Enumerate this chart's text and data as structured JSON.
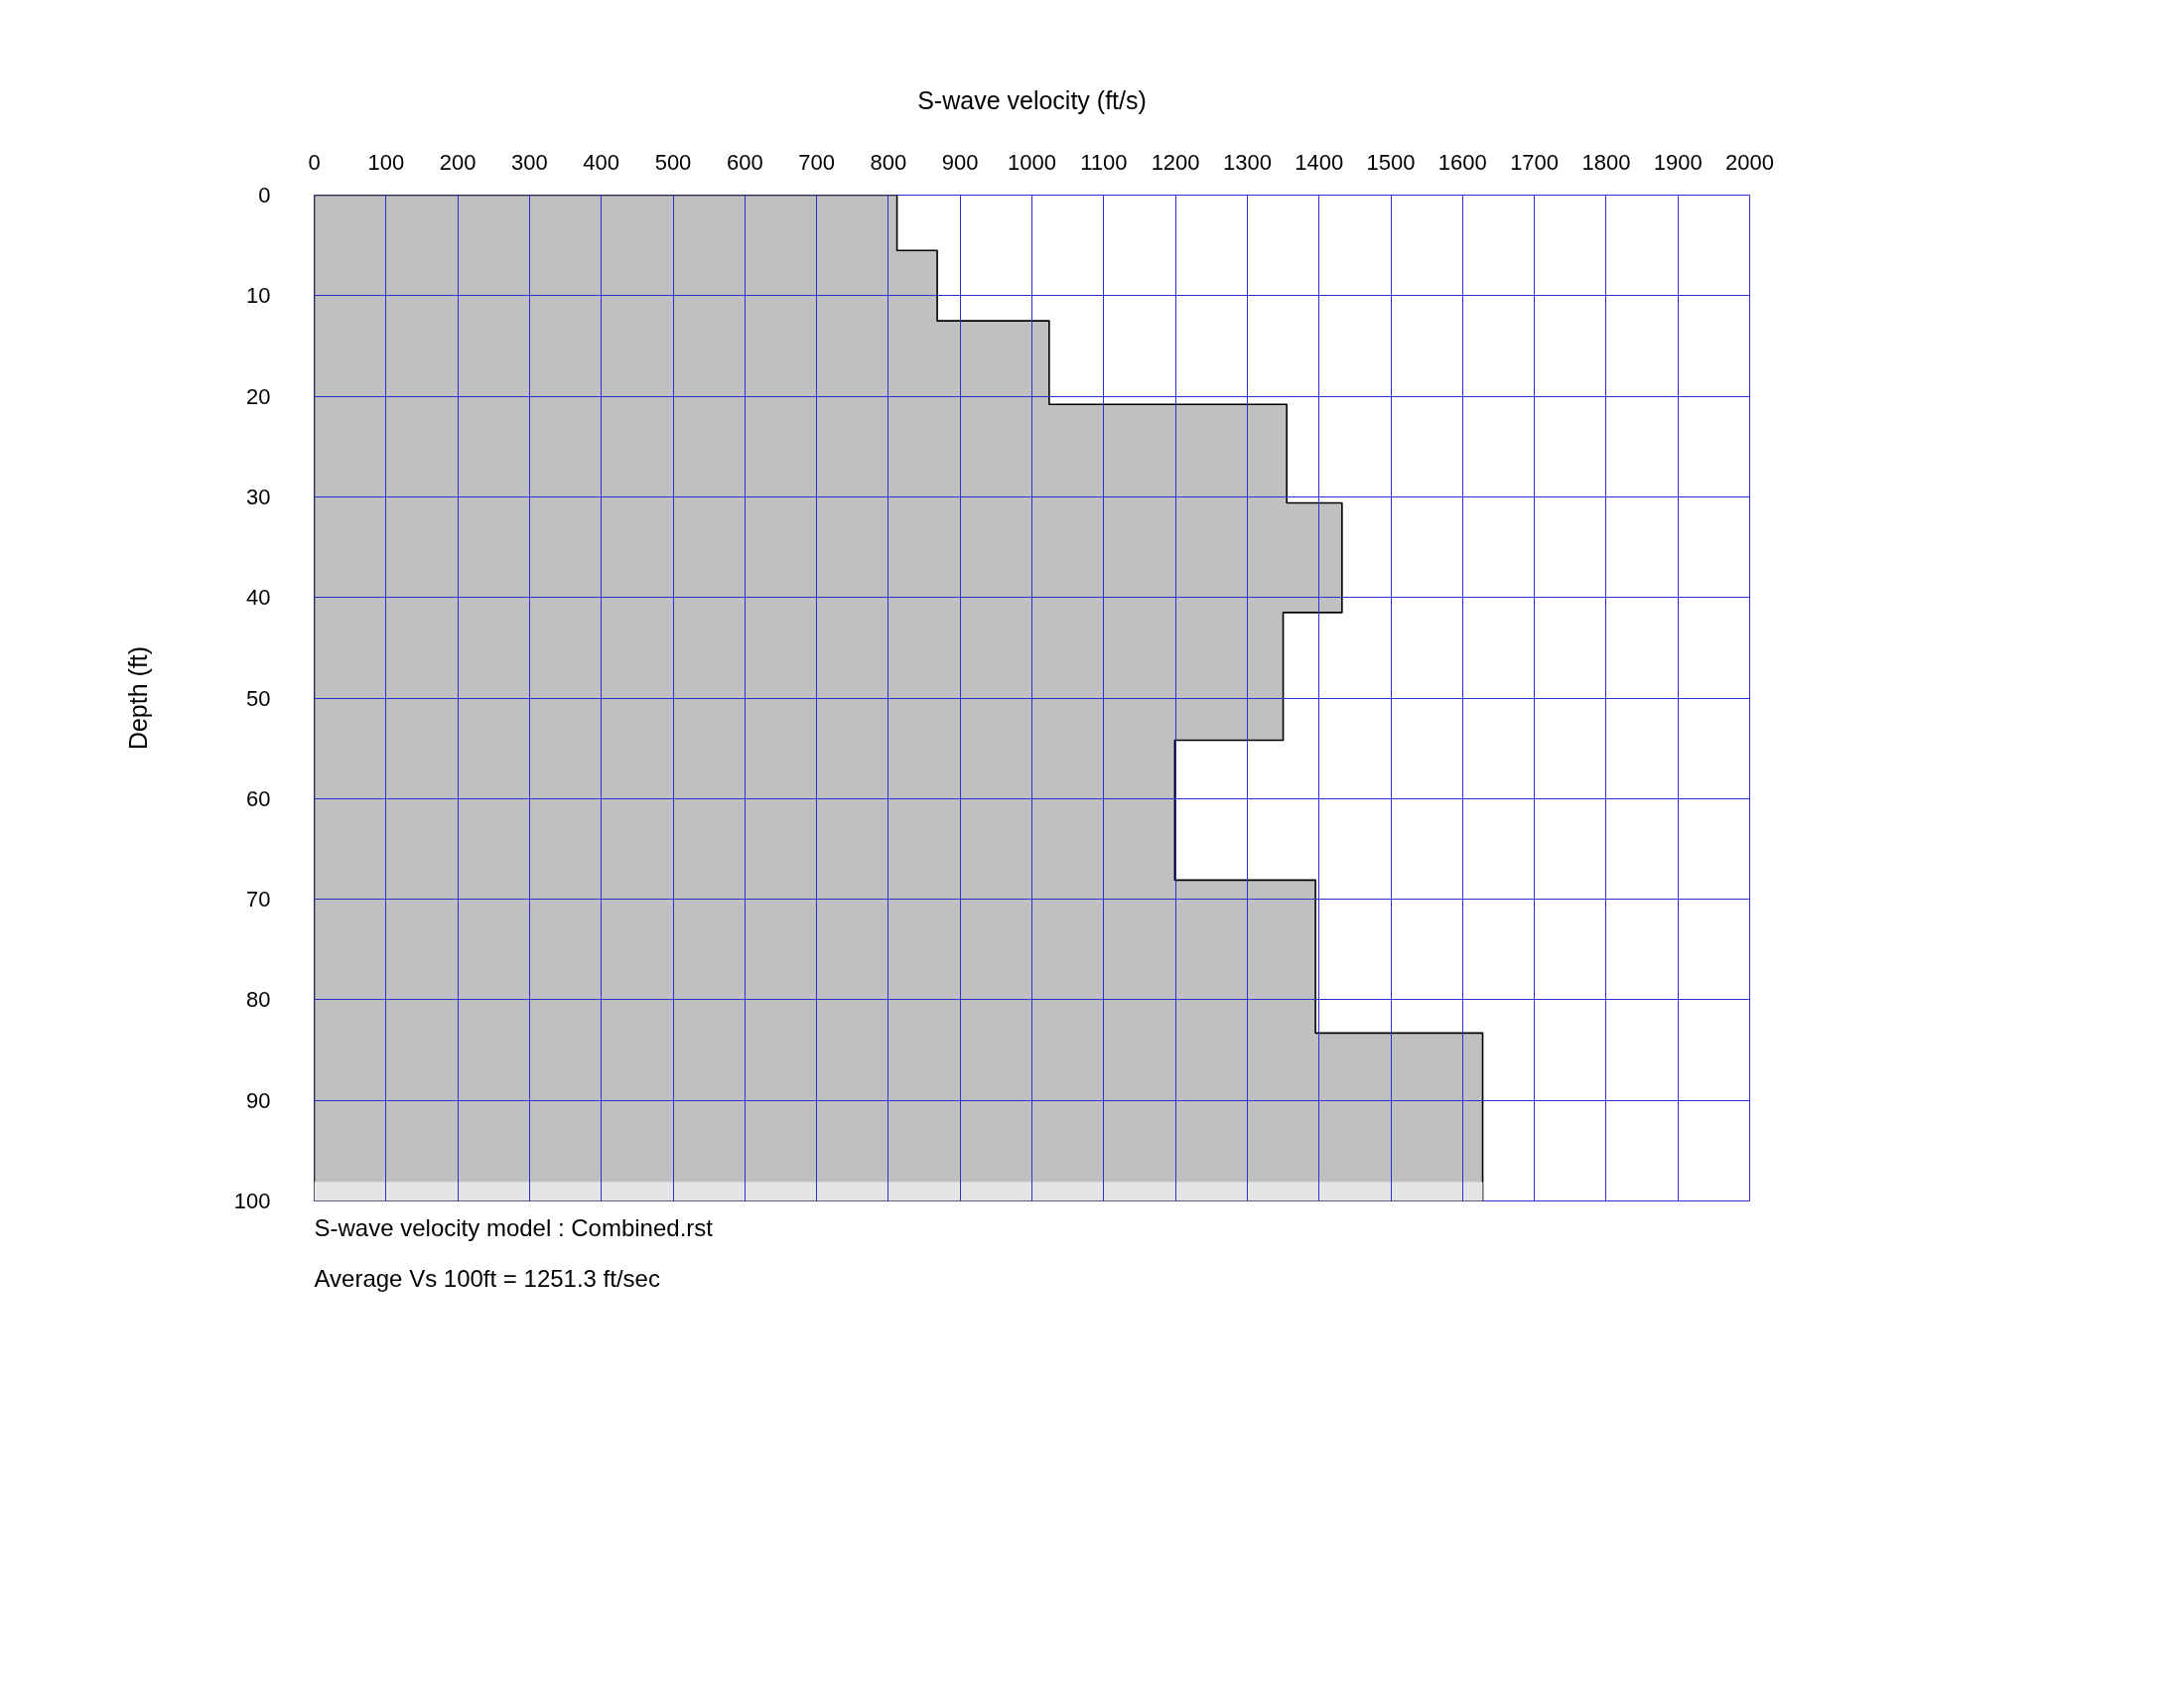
{
  "chart_data": {
    "type": "area",
    "orientation": "horizontal",
    "xlabel": "S-wave velocity (ft/s)",
    "ylabel": "Depth (ft)",
    "xlim": [
      0,
      2000
    ],
    "xticks": [
      0,
      100,
      200,
      300,
      400,
      500,
      600,
      700,
      800,
      900,
      1000,
      1100,
      1200,
      1300,
      1400,
      1500,
      1600,
      1700,
      1800,
      1900,
      2000
    ],
    "ylim": [
      100,
      0
    ],
    "yticks": [
      0,
      10,
      20,
      30,
      40,
      50,
      60,
      70,
      80,
      90,
      100
    ],
    "grid": true,
    "series": [
      {
        "color": "#c0c0c0",
        "line_style": "solid",
        "x": [
          0,
          5.5,
          5.5,
          12.5,
          12.5,
          20.8,
          20.8,
          30.6,
          30.6,
          41.5,
          41.5,
          54.2,
          54.2,
          68.1,
          68.1,
          83.3,
          83.3,
          100
        ],
        "values": [
          812,
          812,
          868,
          868,
          1024,
          1024,
          1355,
          1355,
          1432,
          1432,
          1350,
          1350,
          1199,
          1199,
          1395,
          1395,
          1628,
          1628
        ]
      },
      {
        "color": "#e4e4e4",
        "x": [
          98.1,
          100
        ],
        "values": [
          1628,
          1628
        ]
      }
    ],
    "annotations": [
      "S-wave velocity model : Combined.rst",
      "Average Vs 100ft = 1251.3 ft/sec"
    ]
  }
}
